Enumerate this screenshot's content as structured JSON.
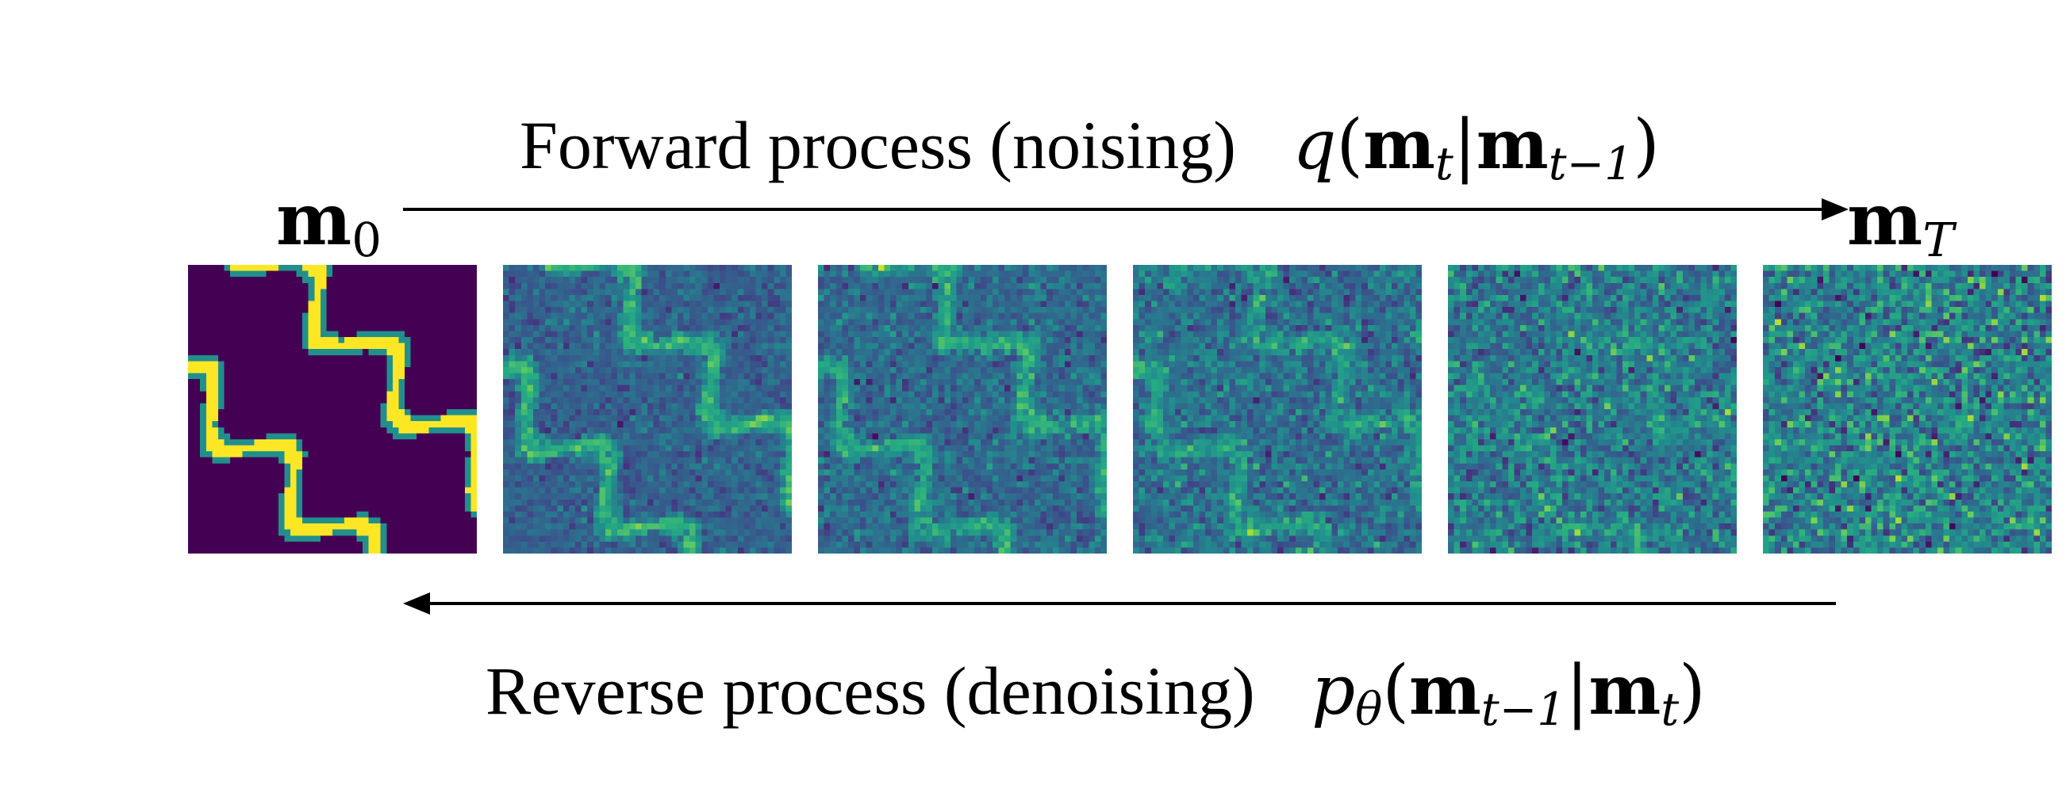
{
  "forward": {
    "label": "Forward process (noising)",
    "formula": {
      "fn": "q",
      "m1": "m",
      "s1": "t",
      "bar": "|",
      "m2": "m",
      "s2": "t−1"
    }
  },
  "reverse": {
    "label": "Reverse process (denoising)",
    "formula": {
      "fn": "p",
      "fn_sub": "θ",
      "m1": "m",
      "s1": "t−1",
      "bar": "|",
      "m2": "m",
      "s2": "t"
    }
  },
  "start_label": {
    "m": "m",
    "sub": "0"
  },
  "end_label": {
    "m": "m",
    "sub": "T"
  },
  "frames": {
    "count": 6,
    "grid": 48,
    "noise_levels": [
      0.0,
      0.35,
      0.5,
      0.62,
      0.82,
      1.0
    ],
    "colormap": "viridis"
  }
}
